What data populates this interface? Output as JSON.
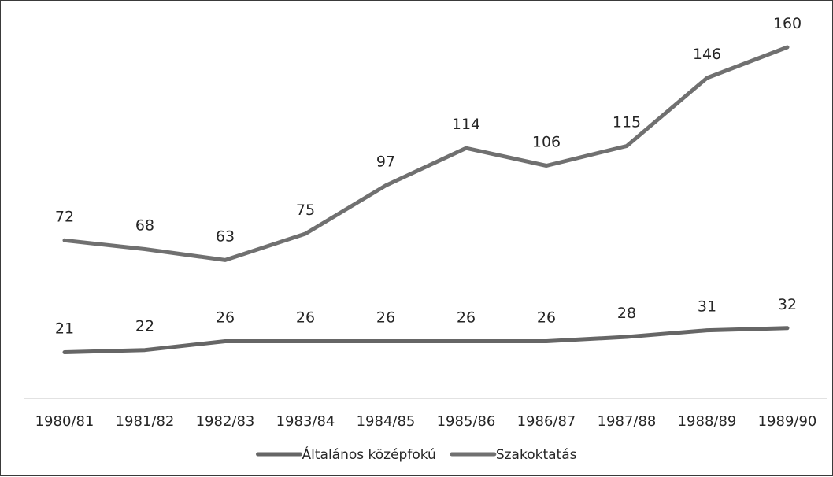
{
  "chart_data": {
    "type": "line",
    "title": "",
    "xlabel": "",
    "ylabel": "",
    "categories": [
      "1980/81",
      "1981/82",
      "1982/83",
      "1983/84",
      "1984/85",
      "1985/86",
      "1986/87",
      "1987/88",
      "1988/89",
      "1989/90"
    ],
    "series": [
      {
        "name": "Általános középfokú",
        "values": [
          21,
          22,
          26,
          26,
          26,
          26,
          26,
          28,
          31,
          32
        ],
        "color": "#666666"
      },
      {
        "name": "Szakoktatás",
        "values": [
          72,
          68,
          63,
          75,
          97,
          114,
          106,
          115,
          146,
          160
        ],
        "color": "#707070"
      }
    ],
    "ylim": [
      0,
      174
    ],
    "grid": false,
    "data_labels": true,
    "legend": "bottom"
  },
  "colors": {
    "axis": "#d9d9d9",
    "text": "#262626",
    "border": "#3a3a3a"
  }
}
